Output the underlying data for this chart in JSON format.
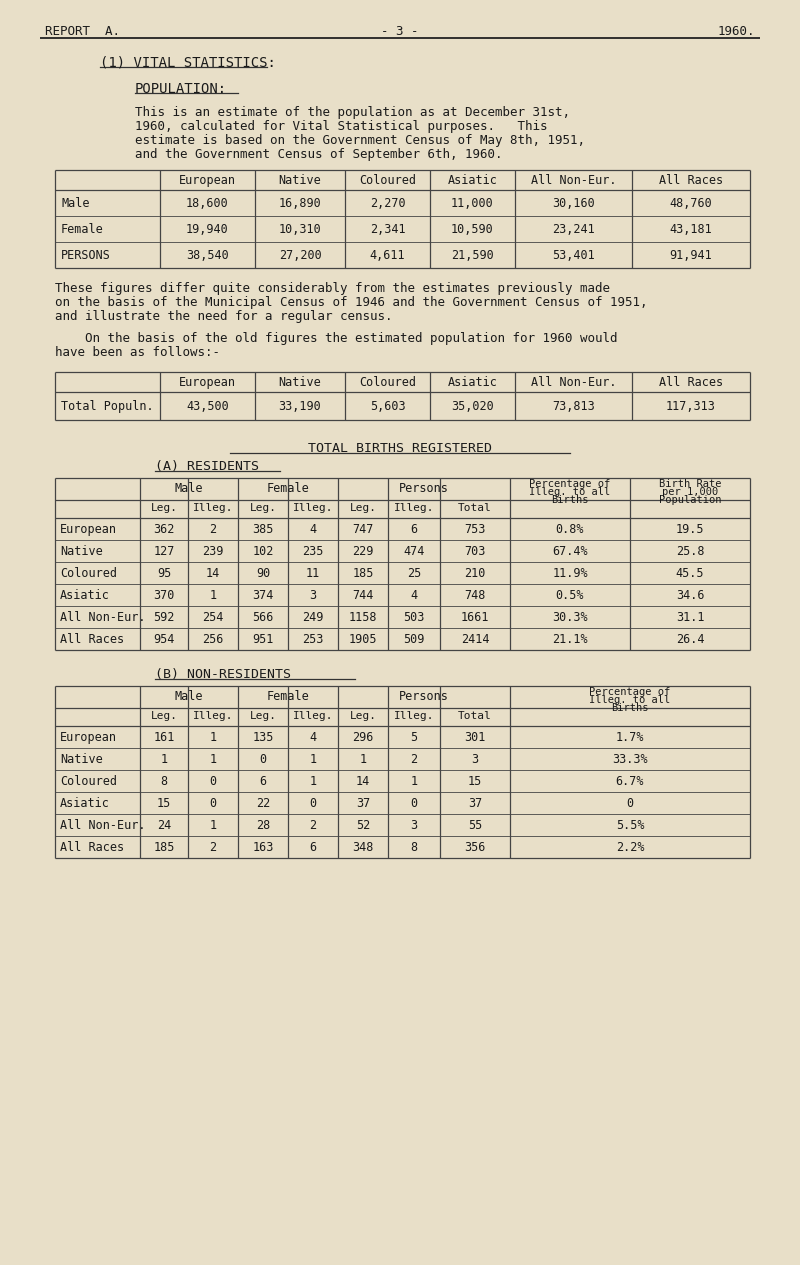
{
  "bg_color": "#e8dfc8",
  "text_color": "#1a1a1a",
  "header_left": "REPORT  A.",
  "header_center": "- 3 -",
  "header_right": "1960.",
  "section_title": "(1) VITAL STATISTICS:",
  "sub_title1": "POPULATION:",
  "para1_lines": [
    "This is an estimate of the population as at December 31st,",
    "1960, calculated for Vital Statistical purposes.   This",
    "estimate is based on the Government Census of May 8th, 1951,",
    "and the Government Census of September 6th, 1960."
  ],
  "pop_table1_cols": [
    "",
    "European",
    "Native",
    "Coloured",
    "Asiatic",
    "All Non-Eur.",
    "All Races"
  ],
  "pop_table1_rows": [
    [
      "Male",
      "18,600",
      "16,890",
      "2,270",
      "11,000",
      "30,160",
      "48,760"
    ],
    [
      "Female",
      "19,940",
      "10,310",
      "2,341",
      "10,590",
      "23,241",
      "43,181"
    ],
    [
      "PERSONS",
      "38,540",
      "27,200",
      "4,611",
      "21,590",
      "53,401",
      "91,941"
    ]
  ],
  "para2_lines": [
    "These figures differ quite considerably from the estimates previously made",
    "on the basis of the Municipal Census of 1946 and the Government Census of 1951,",
    "and illustrate the need for a regular census."
  ],
  "para3_lines": [
    "    On the basis of the old figures the estimated population for 1960 would",
    "have been as follows:-"
  ],
  "pop_table2_cols": [
    "",
    "European",
    "Native",
    "Coloured",
    "Asiatic",
    "All Non-Eur.",
    "All Races"
  ],
  "pop_table2_rows": [
    [
      "Total Populn.",
      "43,500",
      "33,190",
      "5,603",
      "35,020",
      "73,813",
      "117,313"
    ]
  ],
  "births_title": "TOTAL BIRTHS REGISTERED",
  "births_sub": "(A) RESIDENTS",
  "births_tableA_rows": [
    [
      "European",
      "362",
      "2",
      "385",
      "4",
      "747",
      "6",
      "753",
      "0.8%",
      "19.5"
    ],
    [
      "Native",
      "127",
      "239",
      "102",
      "235",
      "229",
      "474",
      "703",
      "67.4%",
      "25.8"
    ],
    [
      "Coloured",
      "95",
      "14",
      "90",
      "11",
      "185",
      "25",
      "210",
      "11.9%",
      "45.5"
    ],
    [
      "Asiatic",
      "370",
      "1",
      "374",
      "3",
      "744",
      "4",
      "748",
      "0.5%",
      "34.6"
    ],
    [
      "All Non-Eur.",
      "592",
      "254",
      "566",
      "249",
      "1158",
      "503",
      "1661",
      "30.3%",
      "31.1"
    ],
    [
      "All Races",
      "954",
      "256",
      "951",
      "253",
      "1905",
      "509",
      "2414",
      "21.1%",
      "26.4"
    ]
  ],
  "births_subB": "(B) NON-RESIDENTS",
  "births_tableB_rows": [
    [
      "European",
      "161",
      "1",
      "135",
      "4",
      "296",
      "5",
      "301",
      "1.7%"
    ],
    [
      "Native",
      "1",
      "1",
      "0",
      "1",
      "1",
      "2",
      "3",
      "33.3%"
    ],
    [
      "Coloured",
      "8",
      "0",
      "6",
      "1",
      "14",
      "1",
      "15",
      "6.7%"
    ],
    [
      "Asiatic",
      "15",
      "0",
      "22",
      "0",
      "37",
      "0",
      "37",
      "0"
    ],
    [
      "All Non-Eur.",
      "24",
      "1",
      "28",
      "2",
      "52",
      "3",
      "55",
      "5.5%"
    ],
    [
      "All Races",
      "185",
      "2",
      "163",
      "6",
      "348",
      "8",
      "356",
      "2.2%"
    ]
  ]
}
